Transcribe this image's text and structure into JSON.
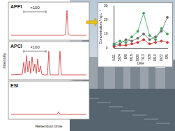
{
  "panels": [
    {
      "label": "APPI",
      "annotation": "×100"
    },
    {
      "label": "APCI",
      "annotation": "×100"
    },
    {
      "label": "ESI"
    }
  ],
  "axis_labels": {
    "y": "Intensity",
    "x": "Retention time"
  },
  "chart_data": {
    "type": "line",
    "x_label": "Date",
    "y_label": "Concentration / ng L⁻¹",
    "categories": [
      "5/11",
      "5/24",
      "6/8",
      "6/16",
      "6/30",
      "7/13",
      "7/26",
      "8/10",
      "8/22",
      "9/5"
    ],
    "series": [
      {
        "color": "#3aa05a",
        "values": [
          3,
          5,
          4,
          8,
          12,
          25,
          9,
          6,
          14,
          10
        ]
      },
      {
        "color": "#666666",
        "values": [
          2,
          3,
          6,
          5,
          7,
          10,
          6,
          8,
          12,
          22
        ]
      },
      {
        "color": "#d03030",
        "values": [
          1,
          2,
          2,
          3,
          4,
          6,
          3,
          4,
          5,
          4
        ]
      }
    ],
    "ylim": [
      0,
      30
    ],
    "yticks": [
      0,
      10,
      20,
      30
    ],
    "grid": false,
    "marker": "circle"
  }
}
